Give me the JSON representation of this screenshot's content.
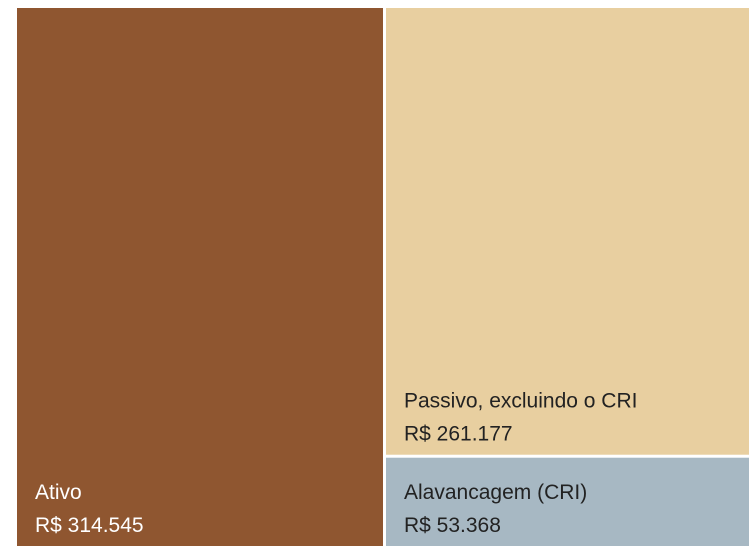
{
  "chart_data": {
    "type": "treemap",
    "categories": [
      "Ativo",
      "Passivo, excluindo o CRI",
      "Alavancagem (CRI)"
    ],
    "values": [
      314545,
      261177,
      53368
    ],
    "value_labels": [
      "R$ 314.545",
      "R$ 261.177",
      "R$ 53.368"
    ],
    "colors": [
      "#8f5630",
      "#e8cfa0",
      "#a7b8c3"
    ]
  }
}
